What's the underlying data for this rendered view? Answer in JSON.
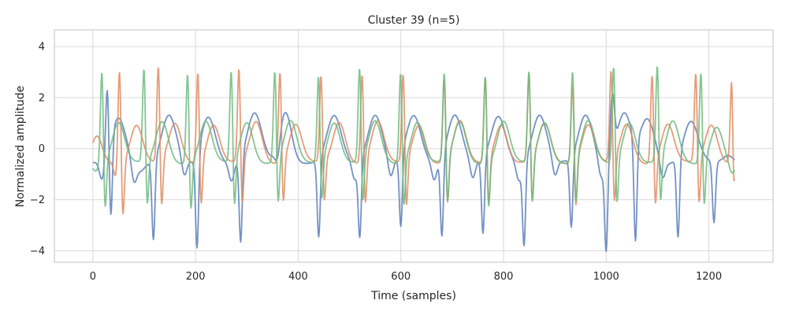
{
  "chart_data": {
    "type": "line",
    "title": "Cluster 39 (n=5)",
    "xlabel": "Time (samples)",
    "ylabel": "Normalized amplitude",
    "xlim": [
      -75,
      1325
    ],
    "ylim": [
      -4.45,
      4.65
    ],
    "x_ticks": [
      0,
      200,
      400,
      600,
      800,
      1000,
      1200
    ],
    "y_ticks": [
      -4,
      -2,
      0,
      2,
      4
    ],
    "grid": true,
    "legend": "none",
    "series": [
      {
        "color": "#5b7fbc",
        "x_start": 0,
        "x_end": 1250,
        "beats": [
          [
            18,
            -0.8,
            5
          ],
          [
            28,
            2.6,
            3
          ],
          [
            35,
            -3.2,
            3
          ],
          [
            50,
            1.7,
            14
          ],
          [
            80,
            -0.8,
            5
          ],
          [
            92,
            -0.3,
            8
          ],
          [
            118,
            -3.15,
            3
          ],
          [
            148,
            1.85,
            14
          ],
          [
            178,
            -0.7,
            5
          ],
          [
            200,
            -0.2,
            8
          ],
          [
            203,
            -3.7,
            3
          ],
          [
            225,
            1.8,
            14
          ],
          [
            270,
            -0.7,
            5
          ],
          [
            288,
            -3.4,
            3
          ],
          [
            315,
            1.9,
            14
          ],
          [
            360,
            -0.7,
            5
          ],
          [
            375,
            2.0,
            12
          ],
          [
            440,
            -3.1,
            3
          ],
          [
            470,
            1.8,
            14
          ],
          [
            510,
            -0.7,
            5
          ],
          [
            520,
            -3.0,
            3
          ],
          [
            550,
            1.9,
            14
          ],
          [
            580,
            -0.7,
            5
          ],
          [
            600,
            -2.9,
            3
          ],
          [
            625,
            1.8,
            14
          ],
          [
            665,
            -0.7,
            5
          ],
          [
            680,
            -3.2,
            3
          ],
          [
            705,
            1.9,
            14
          ],
          [
            740,
            -0.7,
            5
          ],
          [
            760,
            -3.0,
            3
          ],
          [
            790,
            1.8,
            14
          ],
          [
            830,
            -0.7,
            5
          ],
          [
            840,
            -3.3,
            3
          ],
          [
            870,
            1.85,
            14
          ],
          [
            900,
            -0.7,
            5
          ],
          [
            932,
            -2.8,
            3
          ],
          [
            960,
            1.9,
            14
          ],
          [
            990,
            -0.7,
            5
          ],
          [
            1000,
            -3.5,
            3
          ],
          [
            1012,
            2.2,
            4
          ],
          [
            1035,
            1.9,
            14
          ],
          [
            1057,
            -4.1,
            3
          ],
          [
            1080,
            1.7,
            14
          ],
          [
            1110,
            -0.7,
            5
          ],
          [
            1140,
            -3.2,
            3
          ],
          [
            1165,
            1.6,
            14
          ],
          [
            1210,
            -2.4,
            3
          ],
          [
            1238,
            0.3,
            10
          ]
        ]
      },
      {
        "color": "#e08c62",
        "x_start": 0,
        "x_end": 1250,
        "beats": [
          [
            8,
            1.0,
            10
          ],
          [
            45,
            -0.6,
            4
          ],
          [
            52,
            4.0,
            3
          ],
          [
            58,
            -2.5,
            3
          ],
          [
            85,
            1.5,
            12
          ],
          [
            128,
            4.2,
            3
          ],
          [
            133,
            -2.5,
            3
          ],
          [
            160,
            1.5,
            12
          ],
          [
            205,
            4.0,
            3
          ],
          [
            210,
            -2.4,
            3
          ],
          [
            235,
            1.5,
            12
          ],
          [
            285,
            4.1,
            3
          ],
          [
            290,
            -2.4,
            3
          ],
          [
            318,
            1.6,
            12
          ],
          [
            365,
            4.0,
            3
          ],
          [
            370,
            -2.3,
            3
          ],
          [
            395,
            1.5,
            12
          ],
          [
            445,
            3.8,
            3
          ],
          [
            450,
            -2.2,
            3
          ],
          [
            480,
            1.6,
            12
          ],
          [
            525,
            3.9,
            3
          ],
          [
            530,
            -2.4,
            3
          ],
          [
            555,
            1.6,
            12
          ],
          [
            605,
            3.9,
            3
          ],
          [
            610,
            -2.5,
            3
          ],
          [
            635,
            1.5,
            12
          ],
          [
            685,
            3.7,
            3
          ],
          [
            690,
            -2.4,
            3
          ],
          [
            715,
            1.6,
            12
          ],
          [
            765,
            3.8,
            3
          ],
          [
            770,
            -2.4,
            3
          ],
          [
            795,
            1.5,
            12
          ],
          [
            850,
            3.9,
            3
          ],
          [
            855,
            -2.4,
            3
          ],
          [
            880,
            1.5,
            12
          ],
          [
            935,
            3.5,
            3
          ],
          [
            940,
            -2.4,
            3
          ],
          [
            965,
            1.5,
            12
          ],
          [
            1010,
            4.0,
            3
          ],
          [
            1015,
            -2.4,
            3
          ],
          [
            1040,
            1.5,
            12
          ],
          [
            1090,
            3.9,
            3
          ],
          [
            1095,
            -2.4,
            3
          ],
          [
            1120,
            1.5,
            12
          ],
          [
            1175,
            3.9,
            3
          ],
          [
            1180,
            -2.4,
            3
          ],
          [
            1205,
            1.5,
            12
          ],
          [
            1245,
            3.7,
            3
          ],
          [
            1248,
            -2.5,
            2
          ]
        ]
      },
      {
        "color": "#6fbb7f",
        "x_start": 0,
        "x_end": 1250,
        "beats": [
          [
            5,
            -0.3,
            6
          ],
          [
            18,
            4.1,
            3
          ],
          [
            23,
            -2.5,
            3
          ],
          [
            50,
            1.6,
            12
          ],
          [
            100,
            4.1,
            3
          ],
          [
            105,
            -2.4,
            3
          ],
          [
            135,
            1.6,
            12
          ],
          [
            185,
            4.0,
            3
          ],
          [
            190,
            -2.5,
            3
          ],
          [
            220,
            1.6,
            12
          ],
          [
            270,
            4.0,
            3
          ],
          [
            275,
            -2.5,
            3
          ],
          [
            300,
            1.6,
            12
          ],
          [
            355,
            4.0,
            3
          ],
          [
            360,
            -2.4,
            3
          ],
          [
            385,
            1.6,
            12
          ],
          [
            440,
            3.8,
            3
          ],
          [
            445,
            -2.2,
            3
          ],
          [
            470,
            1.6,
            12
          ],
          [
            520,
            4.1,
            3
          ],
          [
            525,
            -2.4,
            3
          ],
          [
            550,
            1.6,
            12
          ],
          [
            600,
            4.0,
            3
          ],
          [
            605,
            -2.4,
            3
          ],
          [
            632,
            1.6,
            12
          ],
          [
            685,
            3.9,
            3
          ],
          [
            690,
            -2.4,
            3
          ],
          [
            715,
            1.6,
            12
          ],
          [
            765,
            3.9,
            3
          ],
          [
            770,
            -2.4,
            3
          ],
          [
            800,
            1.6,
            12
          ],
          [
            850,
            4.0,
            3
          ],
          [
            855,
            -2.4,
            3
          ],
          [
            880,
            1.6,
            12
          ],
          [
            935,
            4.0,
            3
          ],
          [
            940,
            -2.4,
            3
          ],
          [
            965,
            1.6,
            12
          ],
          [
            1015,
            4.2,
            3
          ],
          [
            1020,
            -2.4,
            3
          ],
          [
            1045,
            1.6,
            12
          ],
          [
            1100,
            4.2,
            3
          ],
          [
            1105,
            -2.4,
            3
          ],
          [
            1130,
            1.6,
            12
          ],
          [
            1185,
            4.0,
            3
          ],
          [
            1190,
            -2.4,
            3
          ],
          [
            1215,
            1.4,
            12
          ],
          [
            1245,
            -0.5,
            6
          ]
        ]
      }
    ]
  }
}
